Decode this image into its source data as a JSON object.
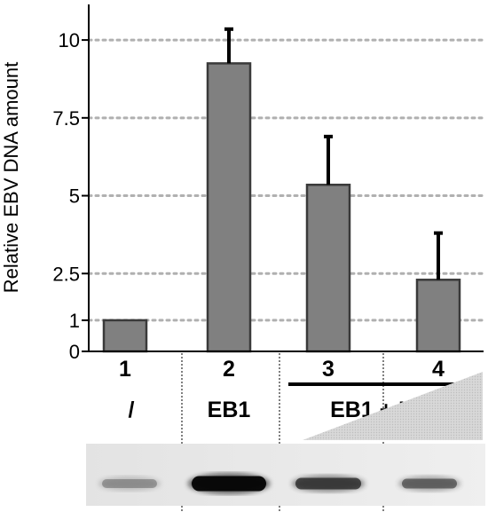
{
  "chart_data": {
    "type": "bar",
    "ylabel": "Relative EBV DNA amount",
    "yticks": [
      {
        "value": 0,
        "label": "0"
      },
      {
        "value": 1,
        "label": "1"
      },
      {
        "value": 2.5,
        "label": "2.5"
      },
      {
        "value": 5,
        "label": "5"
      },
      {
        "value": 7.5,
        "label": "7.5"
      },
      {
        "value": 10,
        "label": "10"
      }
    ],
    "ylim": [
      0,
      11
    ],
    "grid": true,
    "categories": [
      "1",
      "2",
      "3",
      "4"
    ],
    "values": [
      1.0,
      9.25,
      5.35,
      2.3
    ],
    "errors": [
      0.0,
      1.1,
      1.55,
      1.5
    ],
    "lane_conditions": [
      "/",
      "EB1",
      "EB1 + Ubn",
      ""
    ],
    "bar_color": "#808080",
    "grid_color": "#b0b0b0"
  },
  "gel": {
    "band_intensity": [
      0.35,
      0.95,
      0.7,
      0.55
    ]
  }
}
